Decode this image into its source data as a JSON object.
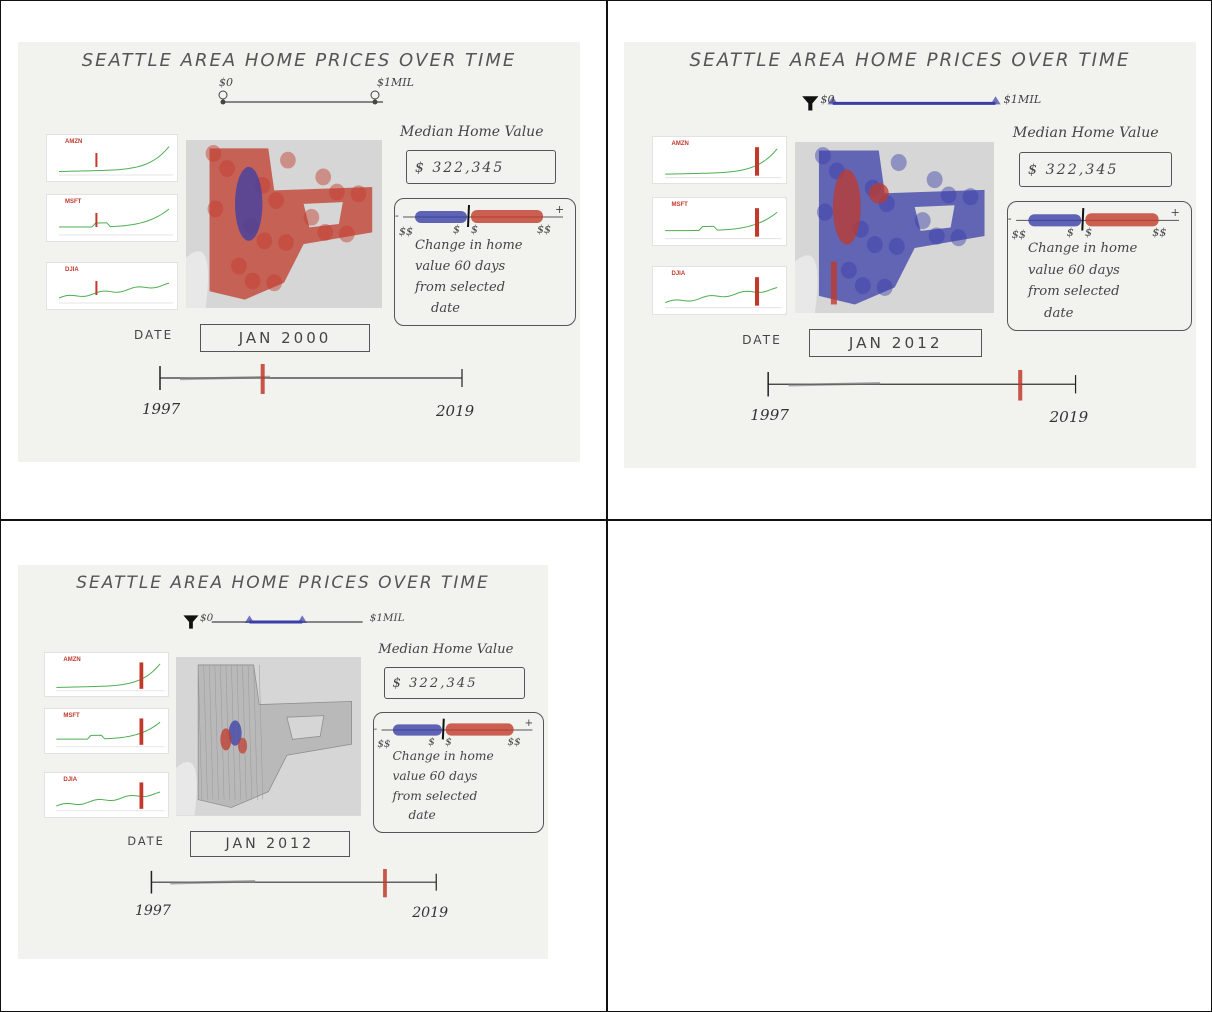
{
  "panels": [
    {
      "title": "SEATTLE AREA HOME PRICES OVER TIME",
      "filter": {
        "min_label": "$0",
        "max_label": "$1MIL",
        "range": [
          0.0,
          0.95
        ],
        "style": "pins"
      },
      "tickers": [
        "AMZN",
        "MSFT",
        "DJIA"
      ],
      "median": {
        "label": "Median Home Value",
        "value": "$ 322,345"
      },
      "legend": {
        "minus": "-",
        "plus": "+",
        "low": "$$",
        "mid1": "$",
        "mid2": "$",
        "high": "$$",
        "text": [
          "Change in home",
          "value 60 days",
          "from selected",
          "date"
        ]
      },
      "date": {
        "label": "DATE",
        "value": "JAN 2000"
      },
      "timeline": {
        "start": "1997",
        "end": "2019",
        "marker_fraction": 0.34
      },
      "map_style": "mostly-red"
    },
    {
      "title": "SEATTLE AREA HOME PRICES OVER TIME",
      "filter": {
        "min_label": "$0",
        "max_label": "$1MIL",
        "range": [
          0.0,
          1.0
        ],
        "style": "funnel"
      },
      "tickers": [
        "AMZN",
        "MSFT",
        "DJIA"
      ],
      "median": {
        "label": "Median Home Value",
        "value": "$ 322,345"
      },
      "legend": {
        "minus": "-",
        "plus": "+",
        "low": "$$",
        "mid1": "$",
        "mid2": "$",
        "high": "$$",
        "text": [
          "Change in home",
          "value 60 days",
          "from selected",
          "date"
        ]
      },
      "date": {
        "label": "DATE",
        "value": "JAN 2012"
      },
      "timeline": {
        "start": "1997",
        "end": "2019",
        "marker_fraction": 0.82
      },
      "map_style": "mostly-blue"
    },
    {
      "title": "SEATTLE AREA HOME PRICES OVER TIME",
      "filter": {
        "min_label": "$0",
        "max_label": "$1MIL",
        "range": [
          0.25,
          0.6
        ],
        "style": "funnel"
      },
      "tickers": [
        "AMZN",
        "MSFT",
        "DJIA"
      ],
      "median": {
        "label": "Median Home Value",
        "value": "$ 322,345"
      },
      "legend": {
        "minus": "-",
        "plus": "+",
        "low": "$$",
        "mid1": "$",
        "mid2": "$",
        "high": "$$",
        "text": [
          "Change in home",
          "value 60 days",
          "from selected",
          "date"
        ]
      },
      "date": {
        "label": "DATE",
        "value": "JAN 2012"
      },
      "timeline": {
        "start": "1997",
        "end": "2019",
        "marker_fraction": 0.82
      },
      "map_style": "filtered"
    }
  ],
  "colors": {
    "increase": "#c0392b",
    "decrease": "#3a3fa8",
    "trend": "#4caf50",
    "panel": "#f2f2ee"
  }
}
